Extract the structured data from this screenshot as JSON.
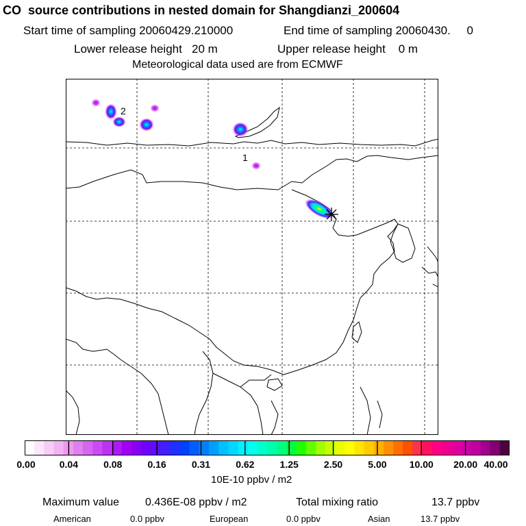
{
  "header": {
    "title": "CO  source contributions in nested domain for Shangdianzi_200604",
    "start_label": "Start time of sampling 20060429.210000",
    "end_label": "End time of sampling 20060430.     0",
    "lower_release": "Lower release height   20 m",
    "upper_release": "Upper release height    0 m",
    "met_data": "Meteorological data used are from ECMWF"
  },
  "map": {
    "station_marker": "asterisk-star",
    "plume_labels": [
      "2",
      "1"
    ]
  },
  "colorbar": {
    "tick_labels": [
      "0.00",
      "0.04",
      "0.08",
      "0.16",
      "0.31",
      "0.62",
      "1.25",
      "2.50",
      "5.00",
      "10.00",
      "20.00",
      "40.00"
    ],
    "units": "10E-10 ppbv / m2",
    "colors": [
      "#ffffff",
      "#fbe6fb",
      "#f7ccf7",
      "#f3b3f3",
      "#ee99ee",
      "#e27fef",
      "#d666f0",
      "#c94cf2",
      "#bc32f4",
      "#af19f5",
      "#a200f7",
      "#8a00f0",
      "#7000ff",
      "#5a10ff",
      "#4020ff",
      "#2030ff",
      "#0040ff",
      "#0060ff",
      "#0080ff",
      "#00a0ff",
      "#00c0ff",
      "#00d8ff",
      "#00f0ff",
      "#00ffee",
      "#00ffcc",
      "#00ffaa",
      "#00ff80",
      "#00ff40",
      "#20ff00",
      "#60ff00",
      "#a0ff00",
      "#c8ff00",
      "#e8ff00",
      "#ffff00",
      "#ffe600",
      "#ffcc00",
      "#ffb000",
      "#ff9000",
      "#ff7000",
      "#ff5000",
      "#ff3050",
      "#ff1060",
      "#ff0080",
      "#f00090",
      "#e000a0",
      "#d000a8",
      "#c000a0",
      "#a00090",
      "#800070",
      "#500040"
    ]
  },
  "footer": {
    "max_label": "Maximum value",
    "max_value": "0.436E-08 ppbv / m2",
    "total_label": "Total mixing ratio",
    "total_value": "13.7 ppbv",
    "regions": [
      {
        "name": "American",
        "value": "0.0 ppbv"
      },
      {
        "name": "European",
        "value": "0.0 ppbv"
      },
      {
        "name": "Asian",
        "value": "13.7 ppbv"
      }
    ]
  }
}
